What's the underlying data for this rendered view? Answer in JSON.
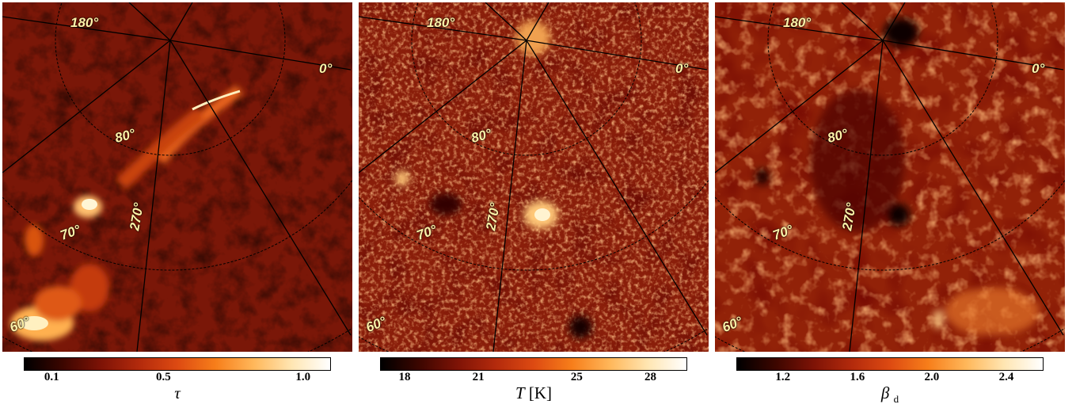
{
  "panels": [
    {
      "id": "tau",
      "labels": {
        "lon180": "180°",
        "lon0": "0°",
        "lat80": "80°",
        "lon270": "270°",
        "lat70": "70°",
        "lat60": "60°"
      },
      "colorbar": {
        "ticks": [
          "0.1",
          "0.5",
          "1.0"
        ],
        "tick_values": [
          0.1,
          0.5,
          1.0
        ],
        "range": [
          0.0,
          1.1
        ],
        "title_symbol": "τ",
        "title_unit": "",
        "title_sub": ""
      }
    },
    {
      "id": "temperature",
      "labels": {
        "lon180": "180°",
        "lon0": "0°",
        "lat80": "80°",
        "lon270": "270°",
        "lat70": "70°",
        "lat60": "60°"
      },
      "colorbar": {
        "ticks": [
          "18",
          "21",
          "25",
          "28"
        ],
        "tick_values": [
          18,
          21,
          25,
          28
        ],
        "range": [
          17,
          29.5
        ],
        "title_symbol": "T",
        "title_unit": "[K]",
        "title_sub": ""
      }
    },
    {
      "id": "beta",
      "labels": {
        "lon180": "180°",
        "lon0": "0°",
        "lat80": "80°",
        "lon270": "270°",
        "lat70": "70°",
        "lat60": "60°"
      },
      "colorbar": {
        "ticks": [
          "1.2",
          "1.6",
          "2.0",
          "2.4"
        ],
        "tick_values": [
          1.2,
          1.6,
          2.0,
          2.4
        ],
        "range": [
          0.95,
          2.6
        ],
        "title_symbol": "β",
        "title_unit": "",
        "title_sub": "d"
      }
    }
  ],
  "colormap": [
    "#000000",
    "#3c0600",
    "#7e1306",
    "#b32a0c",
    "#dd4a12",
    "#f77e1a",
    "#ffb75a",
    "#ffe6b3",
    "#ffffff"
  ]
}
